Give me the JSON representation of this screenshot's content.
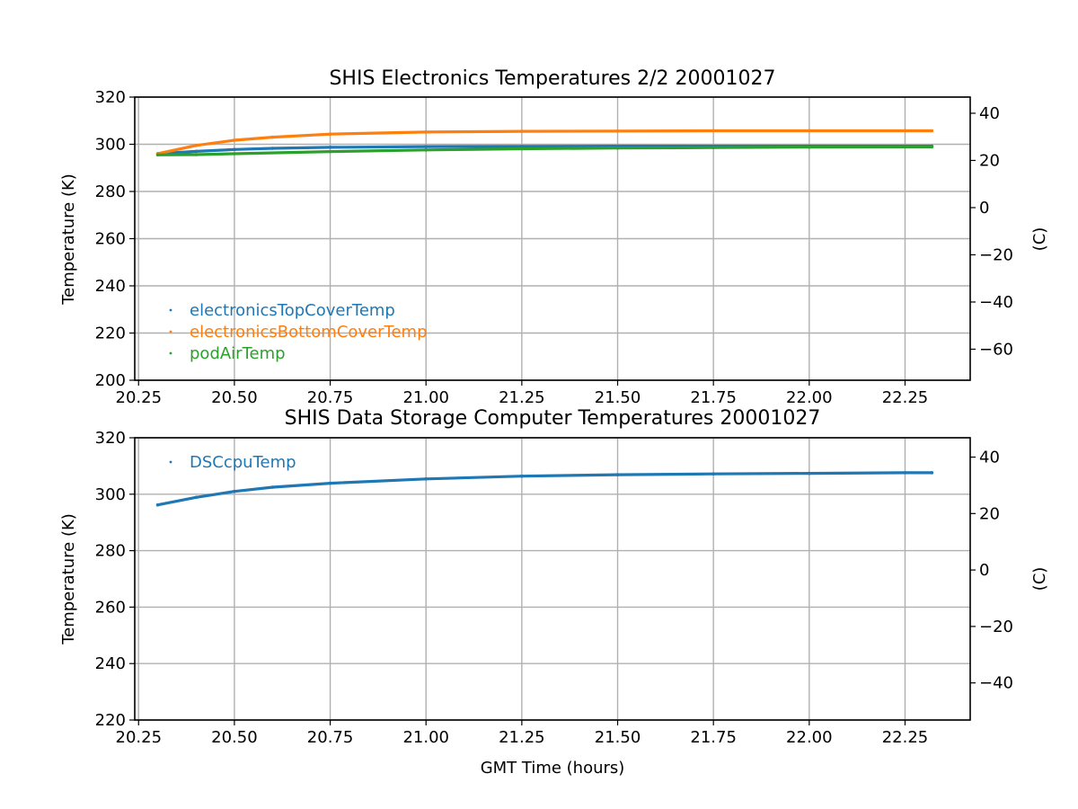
{
  "chart_data": [
    {
      "type": "scatter",
      "title": "SHIS Electronics Temperatures 2/2 20001027",
      "xlabel": "",
      "ylabel": "Temperature (K)",
      "y2label": "(C)",
      "xlim": [
        20.24,
        22.42
      ],
      "ylim": [
        200,
        320
      ],
      "y2lim": [
        -73.15,
        46.85
      ],
      "xticks": [
        "20.25",
        "20.50",
        "20.75",
        "21.00",
        "21.25",
        "21.50",
        "21.75",
        "22.00",
        "22.25"
      ],
      "yticks": [
        "200",
        "220",
        "240",
        "260",
        "280",
        "300",
        "320"
      ],
      "y2ticks": [
        "−60",
        "−40",
        "−20",
        "0",
        "20",
        "40"
      ],
      "grid": true,
      "legend_position": "lower-left",
      "series": [
        {
          "name": "electronicsTopCoverTemp",
          "color": "#1f77b4",
          "x": [
            20.3,
            20.4,
            20.5,
            20.6,
            20.75,
            21.0,
            21.25,
            21.5,
            21.75,
            22.0,
            22.25,
            22.32
          ],
          "y": [
            296.0,
            297.0,
            297.8,
            298.3,
            298.7,
            299.0,
            299.1,
            299.2,
            299.2,
            299.2,
            299.2,
            299.2
          ]
        },
        {
          "name": "electronicsBottomCoverTemp",
          "color": "#ff7f0e",
          "x": [
            20.3,
            20.4,
            20.5,
            20.6,
            20.75,
            21.0,
            21.25,
            21.5,
            21.75,
            22.0,
            22.25,
            22.32
          ],
          "y": [
            296.0,
            299.5,
            301.7,
            303.0,
            304.3,
            305.2,
            305.5,
            305.6,
            305.7,
            305.7,
            305.7,
            305.7
          ]
        },
        {
          "name": "podAirTemp",
          "color": "#2ca02c",
          "x": [
            20.3,
            20.4,
            20.5,
            20.75,
            21.0,
            21.25,
            21.5,
            21.75,
            22.0,
            22.25,
            22.32
          ],
          "y": [
            295.5,
            295.6,
            296.0,
            296.9,
            297.6,
            298.1,
            298.4,
            298.6,
            298.8,
            298.9,
            298.9
          ]
        }
      ]
    },
    {
      "type": "scatter",
      "title": "SHIS Data Storage Computer Temperatures 20001027",
      "xlabel": "GMT Time (hours)",
      "ylabel": "Temperature (K)",
      "y2label": "(C)",
      "xlim": [
        20.24,
        22.42
      ],
      "ylim": [
        220,
        320
      ],
      "y2lim": [
        -53.15,
        46.85
      ],
      "xticks": [
        "20.25",
        "20.50",
        "20.75",
        "21.00",
        "21.25",
        "21.50",
        "21.75",
        "22.00",
        "22.25"
      ],
      "yticks": [
        "220",
        "240",
        "260",
        "280",
        "300",
        "320"
      ],
      "y2ticks": [
        "−40",
        "−20",
        "0",
        "20",
        "40"
      ],
      "grid": true,
      "legend_position": "upper-left",
      "series": [
        {
          "name": "DSCcpuTemp",
          "color": "#1f77b4",
          "x": [
            20.3,
            20.4,
            20.5,
            20.6,
            20.75,
            21.0,
            21.25,
            21.5,
            21.75,
            22.0,
            22.25,
            22.32
          ],
          "y": [
            296.2,
            298.9,
            301.0,
            302.5,
            303.9,
            305.4,
            306.4,
            306.9,
            307.2,
            307.4,
            307.6,
            307.6
          ]
        }
      ]
    }
  ]
}
